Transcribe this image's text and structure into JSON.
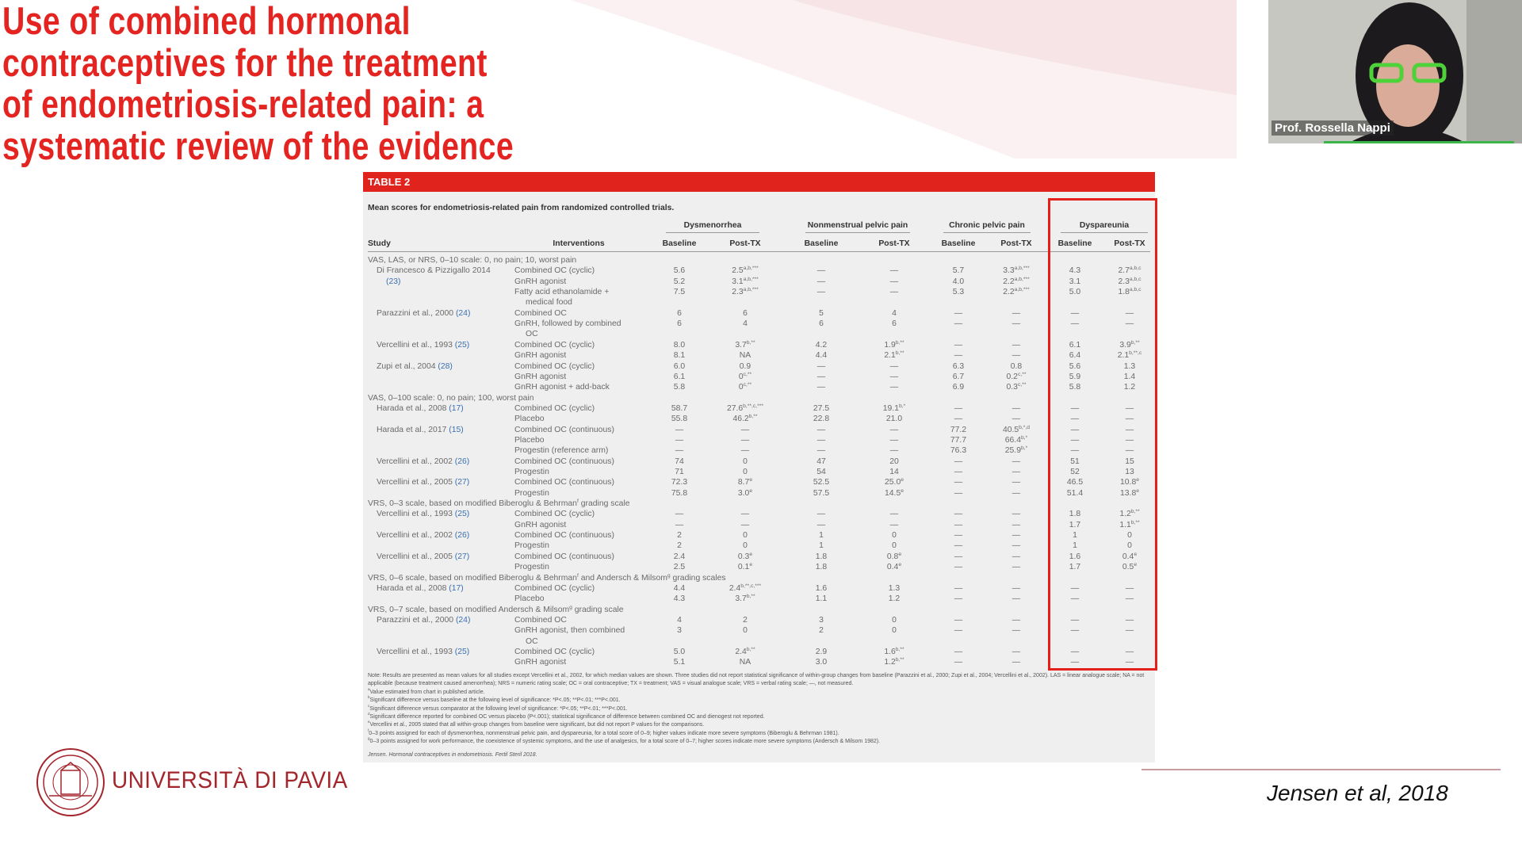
{
  "title": [
    "Use of combined hormonal",
    "contraceptives for the treatment",
    "of endometriosis-related pain: a",
    "systematic review of the evidence"
  ],
  "webcam": {
    "name": "Prof. Rossella Nappi"
  },
  "table": {
    "label": "TABLE 2",
    "caption": "Mean scores for endometriosis-related pain from randomized controlled trials.",
    "groups": [
      "Dysmenorrhea",
      "Nonmenstrual pelvic pain",
      "Chronic pelvic pain",
      "Dyspareunia"
    ],
    "columns": [
      "Study",
      "Interventions",
      "Baseline",
      "Post-TX",
      "Baseline",
      "Post-TX",
      "Baseline",
      "Post-TX",
      "Baseline",
      "Post-TX"
    ],
    "rows": [
      {
        "section": [
          "VAS, LAS, or NRS, 0–10 scale: 0, no pain; 10, worst pain"
        ]
      },
      {
        "study": "Di Francesco & Pizzigallo 2014",
        "intervention": "Combined OC (cyclic)",
        "cells": [
          "5.6",
          [
            "2.5",
            "a,b,***"
          ],
          "—",
          "—",
          "5.7",
          [
            "3.3",
            "a,b,***"
          ],
          "4.3",
          [
            "2.7",
            "a,b,c"
          ]
        ]
      },
      {
        "ref": "(23)",
        "intervention": "GnRH agonist",
        "cells": [
          "5.2",
          [
            "3.1",
            "a,b,***"
          ],
          "—",
          "—",
          "4.0",
          [
            "2.2",
            "a,b,***"
          ],
          "3.1",
          [
            "2.3",
            "a,b,c"
          ]
        ]
      },
      {
        "intervention": "Fatty acid ethanolamide +",
        "cells": [
          "7.5",
          [
            "2.3",
            "a,b,***"
          ],
          "—",
          "—",
          "5.3",
          [
            "2.2",
            "a,b,***"
          ],
          "5.0",
          [
            "1.8",
            "a,b,c"
          ]
        ]
      },
      {
        "intervention": "medical food",
        "indent": true
      },
      {
        "study": "Parazzini et al., 2000",
        "ref": "(24)",
        "intervention": "Combined OC",
        "cells": [
          "6",
          "6",
          "5",
          "4",
          "—",
          "—",
          "—",
          "—"
        ]
      },
      {
        "intervention": "GnRH, followed by combined",
        "cells": [
          "6",
          "4",
          "6",
          "6",
          "—",
          "—",
          "—",
          "—"
        ]
      },
      {
        "intervention": "OC",
        "indent": true
      },
      {
        "study": "Vercellini et al., 1993",
        "ref": "(25)",
        "intervention": "Combined OC (cyclic)",
        "cells": [
          "8.0",
          [
            "3.7",
            "b,**"
          ],
          "4.2",
          [
            "1.9",
            "b,**"
          ],
          "—",
          "—",
          "6.1",
          [
            "3.9",
            "b,**"
          ]
        ]
      },
      {
        "intervention": "GnRH agonist",
        "cells": [
          "8.1",
          "NA",
          "4.4",
          [
            "2.1",
            "b,**"
          ],
          "—",
          "—",
          "6.4",
          [
            "2.1",
            "b,**,c"
          ]
        ]
      },
      {
        "study": "Zupi et al., 2004",
        "ref": "(28)",
        "intervention": "Combined OC (cyclic)",
        "cells": [
          "6.0",
          "0.9",
          "—",
          "—",
          "6.3",
          "0.8",
          "5.6",
          "1.3"
        ]
      },
      {
        "intervention": "GnRH agonist",
        "cells": [
          "6.1",
          [
            "0",
            "c,**"
          ],
          "—",
          "—",
          "6.7",
          [
            "0.2",
            "c,**"
          ],
          "5.9",
          "1.4"
        ]
      },
      {
        "intervention": "GnRH agonist + add-back",
        "cells": [
          "5.8",
          [
            "0",
            "c,**"
          ],
          "—",
          "—",
          "6.9",
          [
            "0.3",
            "c,**"
          ],
          "5.8",
          "1.2"
        ]
      },
      {
        "section": [
          "VAS, 0–100 scale: 0, no pain; 100, worst pain"
        ]
      },
      {
        "study": "Harada et al., 2008",
        "ref": "(17)",
        "intervention": "Combined OC (cyclic)",
        "cells": [
          "58.7",
          [
            "27.6",
            "b,**,c,***"
          ],
          "27.5",
          [
            "19.1",
            "b,*"
          ],
          "—",
          "—",
          "—",
          "—"
        ]
      },
      {
        "intervention": "Placebo",
        "cells": [
          "55.8",
          [
            "46.2",
            "b,**"
          ],
          "22.8",
          "21.0",
          "—",
          "—",
          "—",
          "—"
        ]
      },
      {
        "study": "Harada et al., 2017",
        "ref": "(15)",
        "intervention": "Combined OC (continuous)",
        "cells": [
          "—",
          "—",
          "—",
          "—",
          "77.2",
          [
            "40.5",
            "b,*,d"
          ],
          "—",
          "—"
        ]
      },
      {
        "intervention": "Placebo",
        "cells": [
          "—",
          "—",
          "—",
          "—",
          "77.7",
          [
            "66.4",
            "b,*"
          ],
          "—",
          "—"
        ]
      },
      {
        "intervention": "Progestin (reference arm)",
        "cells": [
          "—",
          "—",
          "—",
          "—",
          "76.3",
          [
            "25.9",
            "b,*"
          ],
          "—",
          "—"
        ]
      },
      {
        "study": "Vercellini et al., 2002",
        "ref": "(26)",
        "intervention": "Combined OC (continuous)",
        "cells": [
          "74",
          "0",
          "47",
          "20",
          "—",
          "—",
          "51",
          "15"
        ]
      },
      {
        "intervention": "Progestin",
        "cells": [
          "71",
          "0",
          "54",
          "14",
          "—",
          "—",
          "52",
          "13"
        ]
      },
      {
        "study": "Vercellini et al., 2005",
        "ref": "(27)",
        "intervention": "Combined OC (continuous)",
        "cells": [
          "72.3",
          [
            "8.7",
            "e"
          ],
          "52.5",
          [
            "25.0",
            "e"
          ],
          "—",
          "—",
          "46.5",
          [
            "10.8",
            "e"
          ]
        ]
      },
      {
        "intervention": "Progestin",
        "cells": [
          "75.8",
          [
            "3.0",
            "e"
          ],
          "57.5",
          [
            "14.5",
            "e"
          ],
          "—",
          "—",
          "51.4",
          [
            "13.8",
            "e"
          ]
        ]
      },
      {
        "section": [
          "VRS, 0–3 scale, based on modified Biberoglu & Behrman",
          "f",
          " grading scale"
        ]
      },
      {
        "study": "Vercellini et al., 1993",
        "ref": "(25)",
        "intervention": "Combined OC (cyclic)",
        "cells": [
          "—",
          "—",
          "—",
          "—",
          "—",
          "—",
          "1.8",
          [
            "1.2",
            "b,**"
          ]
        ]
      },
      {
        "intervention": "GnRH agonist",
        "cells": [
          "—",
          "—",
          "—",
          "—",
          "—",
          "—",
          "1.7",
          [
            "1.1",
            "b,**"
          ]
        ]
      },
      {
        "study": "Vercellini et al., 2002",
        "ref": "(26)",
        "intervention": "Combined OC (continuous)",
        "cells": [
          "2",
          "0",
          "1",
          "0",
          "—",
          "—",
          "1",
          "0"
        ]
      },
      {
        "intervention": "Progestin",
        "cells": [
          "2",
          "0",
          "1",
          "0",
          "—",
          "—",
          "1",
          "0"
        ]
      },
      {
        "study": "Vercellini et al., 2005",
        "ref": "(27)",
        "intervention": "Combined OC (continuous)",
        "cells": [
          "2.4",
          [
            "0.3",
            "e"
          ],
          "1.8",
          [
            "0.8",
            "e"
          ],
          "—",
          "—",
          "1.6",
          [
            "0.4",
            "e"
          ]
        ]
      },
      {
        "intervention": "Progestin",
        "cells": [
          "2.5",
          [
            "0.1",
            "e"
          ],
          "1.8",
          [
            "0.4",
            "e"
          ],
          "—",
          "—",
          "1.7",
          [
            "0.5",
            "e"
          ]
        ]
      },
      {
        "section": [
          "VRS, 0–6 scale, based on modified Biberoglu & Behrman",
          "f",
          " and Andersch & Milsom",
          "g",
          " grading scales"
        ]
      },
      {
        "study": "Harada et al., 2008",
        "ref": "(17)",
        "intervention": "Combined OC (cyclic)",
        "cells": [
          "4.4",
          [
            "2.4",
            "b,**,c,***"
          ],
          "1.6",
          "1.3",
          "—",
          "—",
          "—",
          "—"
        ]
      },
      {
        "intervention": "Placebo",
        "cells": [
          "4.3",
          [
            "3.7",
            "b,**"
          ],
          "1.1",
          "1.2",
          "—",
          "—",
          "—",
          "—"
        ]
      },
      {
        "section": [
          "VRS, 0–7 scale, based on modified Andersch & Milsom",
          "g",
          " grading scale"
        ]
      },
      {
        "study": "Parazzini et al., 2000",
        "ref": "(24)",
        "intervention": "Combined OC",
        "cells": [
          "4",
          "2",
          "3",
          "0",
          "—",
          "—",
          "—",
          "—"
        ]
      },
      {
        "intervention": "GnRH agonist, then combined",
        "cells": [
          "3",
          "0",
          "2",
          "0",
          "—",
          "—",
          "—",
          "—"
        ]
      },
      {
        "intervention": "OC",
        "indent": true
      },
      {
        "study": "Vercellini et al., 1993",
        "ref": "(25)",
        "intervention": "Combined OC (cyclic)",
        "cells": [
          "5.0",
          [
            "2.4",
            "b,**"
          ],
          "2.9",
          [
            "1.6",
            "b,**"
          ],
          "—",
          "—",
          "—",
          "—"
        ]
      },
      {
        "intervention": "GnRH agonist",
        "cells": [
          "5.1",
          "NA",
          "3.0",
          [
            "1.2",
            "b,**"
          ],
          "—",
          "—",
          "—",
          "—"
        ]
      }
    ],
    "notes": [
      [
        "",
        "Note: Results are presented as mean values for all studies except Vercellini et al., 2002, for which median values are shown. Three studies did not report statistical significance of within-group changes from baseline (Parazzini et al., 2000; Zupi et al., 2004; Vercellini et al., 2002). LAS = linear analogue scale; NA = not applicable (because treatment caused amenorrhea); NRS = numeric rating scale; OC = oral contraceptive; TX = treatment; VAS = visual analogue scale; VRS = verbal rating scale; —, not measured."
      ],
      [
        "a",
        "Value estimated from chart in published article."
      ],
      [
        "b",
        "Significant difference versus baseline at the following level of significance: *P<.05; **P<.01; ***P<.001."
      ],
      [
        "c",
        "Significant difference versus comparator at the following level of significance: *P<.05; **P<.01; ***P<.001."
      ],
      [
        "d",
        "Significant difference reported for combined OC versus placebo (P<.001); statistical significance of difference between combined OC and dienogest not reported."
      ],
      [
        "e",
        "Vercellini et al., 2005 stated that all within-group changes from baseline were significant, but did not report P values for the comparisons."
      ],
      [
        "f",
        "0–3 points assigned for each of dysmenorrhea, nonmenstrual pelvic pain, and dyspareunia, for a total score of 0–9; higher values indicate more severe symptoms (Biberoglu & Behrman 1981)."
      ],
      [
        "g",
        "0–3 points assigned for work performance, the coexistence of systemic symptoms, and the use of analgesics, for a total score of 0–7; higher scores indicate more severe symptoms (Andersch & Milsom 1982)."
      ]
    ],
    "citation": "Jensen. Hormonal contraceptives in endometriosis. Fertil Steril 2018."
  },
  "footer": {
    "university": "UNIVERSITÀ DI PAVIA",
    "reference": "Jensen et al, 2018"
  }
}
